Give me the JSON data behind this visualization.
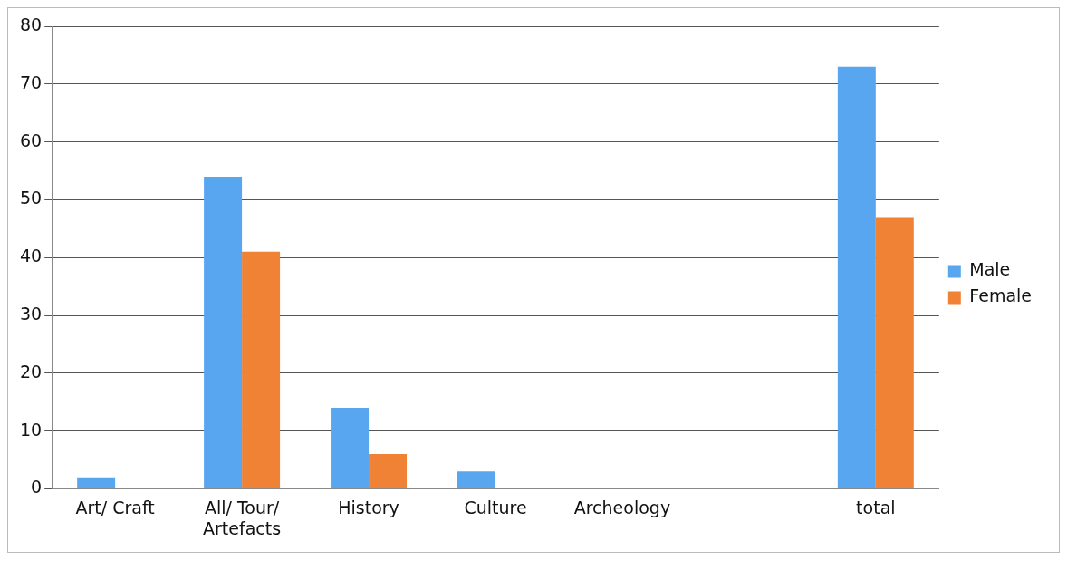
{
  "chart_data": {
    "type": "bar",
    "categories": [
      "Art/ Craft",
      "All/ Tour/ Artefacts",
      "History",
      "Culture",
      "Archeology",
      null,
      "total"
    ],
    "series": [
      {
        "name": "Male",
        "color": "#58a6f0",
        "values": [
          2,
          54,
          14,
          3,
          0,
          0,
          73
        ]
      },
      {
        "name": "Female",
        "color": "#f08236",
        "values": [
          0,
          41,
          6,
          0,
          0,
          0,
          47
        ]
      }
    ],
    "ylim": [
      0,
      80
    ],
    "yticks": [
      0,
      10,
      20,
      30,
      40,
      50,
      60,
      70,
      80
    ],
    "grid": "y",
    "legend": "right"
  }
}
